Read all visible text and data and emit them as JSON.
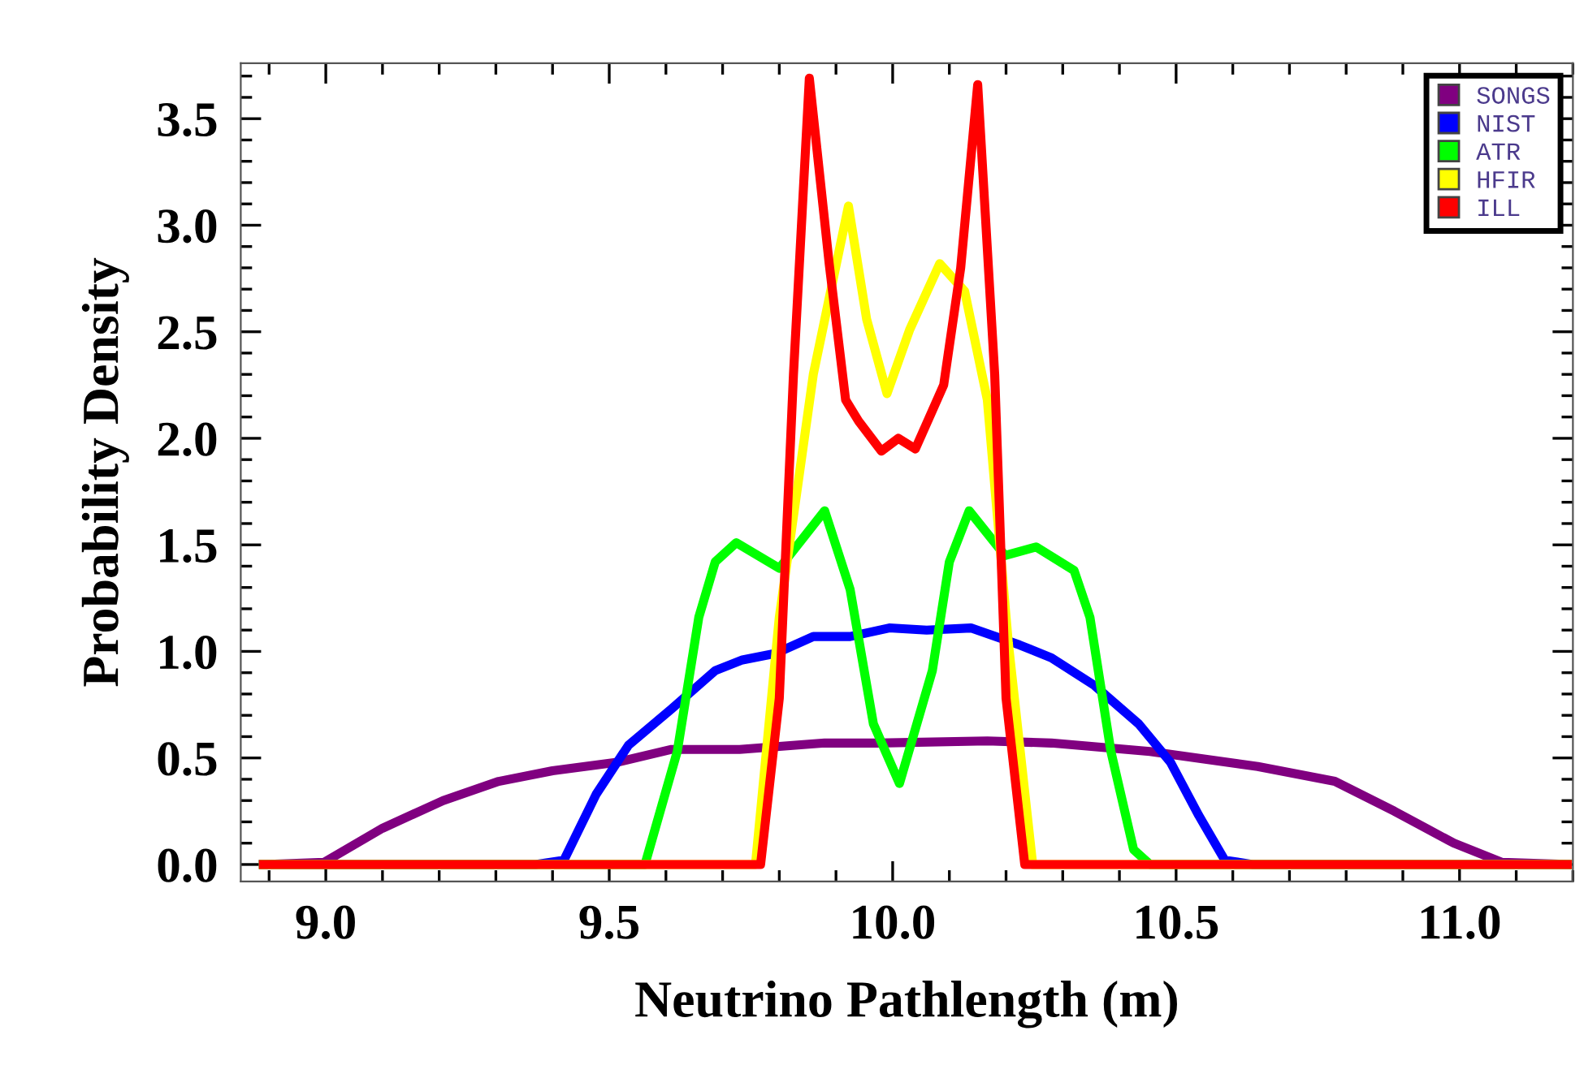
{
  "chart_data": {
    "type": "line",
    "xlabel": "Neutrino Pathlength (m)",
    "ylabel": "Probability Density",
    "xlim": [
      8.85,
      11.2
    ],
    "ylim": [
      -0.08,
      3.76
    ],
    "xticks": [
      {
        "value": 9,
        "label": "9.0"
      },
      9.5,
      {
        "value": 10,
        "label": "10.0"
      },
      10.5,
      {
        "value": 11,
        "label": "11.0"
      }
    ],
    "yticks": [
      {
        "value": 0,
        "label": "0.0"
      },
      0.5,
      {
        "value": 1,
        "label": "1.0"
      },
      1.5,
      {
        "value": 2,
        "label": "2.0"
      },
      2.5,
      {
        "value": 3,
        "label": "3.0"
      },
      3.5
    ],
    "grid": false,
    "legend": "top right",
    "marker": "none",
    "line_style": "solid",
    "series": [
      {
        "name": "SONGS",
        "color": "#800080",
        "x": [
          8.89,
          8.997,
          9.1,
          9.207,
          9.305,
          9.4,
          9.514,
          9.61,
          9.73,
          9.88,
          9.974,
          10.167,
          10.28,
          10.454,
          10.644,
          10.78,
          10.885,
          10.99,
          11.075,
          11.19
        ],
        "values": [
          0,
          0.01,
          0.17,
          0.3,
          0.39,
          0.44,
          0.48,
          0.54,
          0.54,
          0.57,
          0.57,
          0.58,
          0.57,
          0.53,
          0.46,
          0.39,
          0.25,
          0.1,
          0.01,
          0
        ]
      },
      {
        "name": "NIST",
        "color": "#0000ff",
        "x": [
          8.89,
          9.37,
          9.42,
          9.477,
          9.534,
          9.61,
          9.687,
          9.735,
          9.793,
          9.86,
          9.925,
          9.994,
          10.06,
          10.138,
          10.224,
          10.28,
          10.356,
          10.434,
          10.49,
          10.54,
          10.586,
          10.635,
          11.19
        ],
        "values": [
          0,
          0,
          0.02,
          0.33,
          0.56,
          0.73,
          0.91,
          0.96,
          0.99,
          1.07,
          1.07,
          1.11,
          1.1,
          1.11,
          1.03,
          0.97,
          0.84,
          0.66,
          0.48,
          0.23,
          0.02,
          0,
          0
        ]
      },
      {
        "name": "ATR",
        "color": "#00ff00",
        "x": [
          8.89,
          9.563,
          9.62,
          9.658,
          9.687,
          9.724,
          9.8,
          9.88,
          9.925,
          9.966,
          10.012,
          10.07,
          10.1,
          10.135,
          10.198,
          10.253,
          10.32,
          10.348,
          10.385,
          10.425,
          10.454,
          11.19
        ],
        "values": [
          0,
          0,
          0.53,
          1.16,
          1.42,
          1.51,
          1.39,
          1.66,
          1.29,
          0.66,
          0.38,
          0.91,
          1.42,
          1.66,
          1.45,
          1.49,
          1.38,
          1.16,
          0.53,
          0.07,
          0,
          0
        ]
      },
      {
        "name": "HFIR",
        "color": "#ffff00",
        "x": [
          8.89,
          9.758,
          9.8,
          9.86,
          9.922,
          9.954,
          9.99,
          10.03,
          10.083,
          10.127,
          10.167,
          10.204,
          10.247,
          11.19
        ],
        "values": [
          0,
          0,
          1.16,
          2.3,
          3.09,
          2.56,
          2.21,
          2.51,
          2.82,
          2.69,
          2.18,
          1.04,
          0,
          0
        ]
      },
      {
        "name": "ILL",
        "color": "#ff0000",
        "x": [
          8.89,
          9.767,
          9.8,
          9.825,
          9.853,
          9.888,
          9.917,
          9.94,
          9.98,
          10.01,
          10.04,
          10.09,
          10.12,
          10.15,
          10.18,
          10.2,
          10.233,
          11.19
        ],
        "values": [
          0,
          0,
          0.78,
          2.3,
          3.69,
          2.82,
          2.18,
          2.08,
          1.94,
          2.0,
          1.95,
          2.25,
          2.8,
          3.66,
          2.3,
          0.78,
          0,
          0
        ]
      }
    ]
  }
}
